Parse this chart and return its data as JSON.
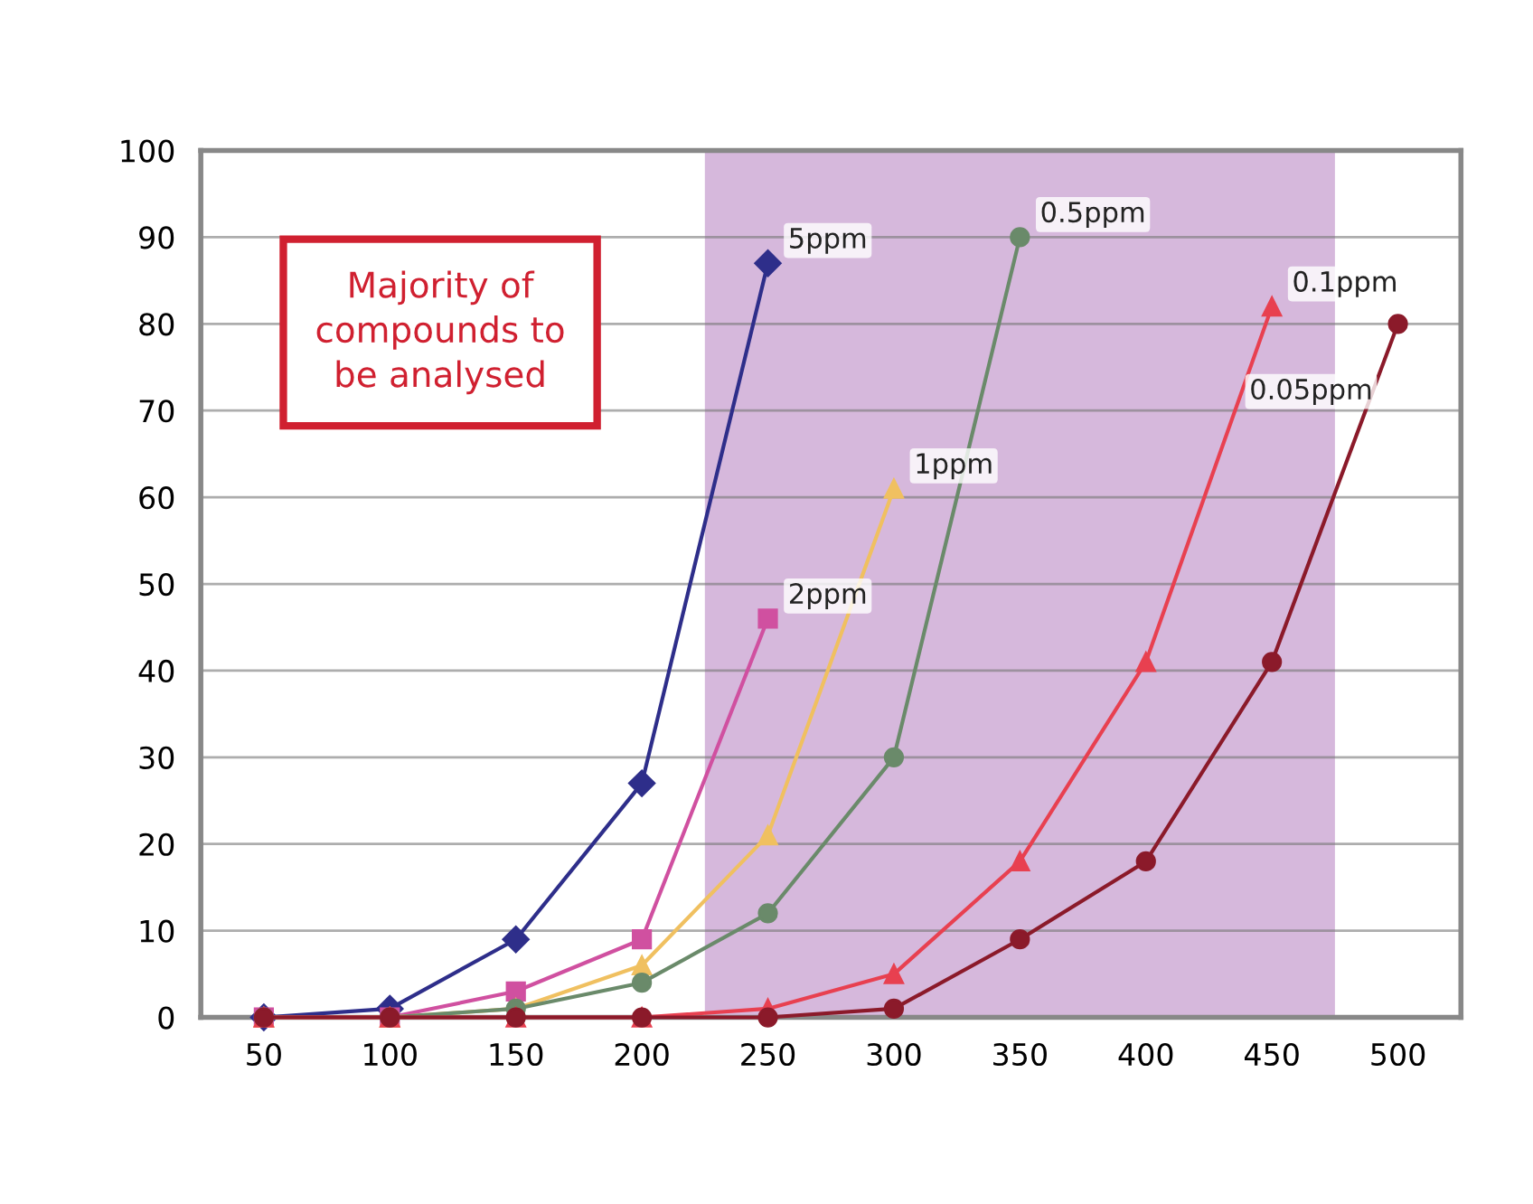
{
  "chart_data": {
    "type": "line",
    "x": [
      50,
      100,
      150,
      200,
      250,
      300,
      350,
      400,
      450,
      500
    ],
    "series": [
      {
        "name": "5ppm",
        "color": "#2e2e8a",
        "marker": "diamond",
        "values": [
          0,
          1,
          9,
          27,
          87,
          null,
          null,
          null,
          null,
          null
        ]
      },
      {
        "name": "2ppm",
        "color": "#d050a0",
        "marker": "square",
        "values": [
          0,
          0,
          3,
          9,
          46,
          null,
          null,
          null,
          null,
          null
        ]
      },
      {
        "name": "1ppm",
        "color": "#f0c060",
        "marker": "triangle",
        "values": [
          0,
          0,
          1,
          6,
          21,
          61,
          null,
          null,
          null,
          null
        ]
      },
      {
        "name": "0.5ppm",
        "color": "#6a8a6a",
        "marker": "circle",
        "values": [
          0,
          0,
          1,
          4,
          12,
          30,
          90,
          null,
          null,
          null
        ]
      },
      {
        "name": "0.1ppm",
        "color": "#e84050",
        "marker": "triangle",
        "values": [
          0,
          0,
          0,
          0,
          1,
          5,
          18,
          41,
          82,
          null
        ]
      },
      {
        "name": "0.05ppm",
        "color": "#8b1a2a",
        "marker": "circle",
        "values": [
          0,
          0,
          0,
          0,
          0,
          1,
          9,
          18,
          41,
          80
        ]
      }
    ],
    "xlim": [
      25,
      525
    ],
    "xticks": [
      50,
      100,
      150,
      200,
      250,
      300,
      350,
      400,
      450,
      500
    ],
    "ylim": [
      0,
      100
    ],
    "yticks": [
      0,
      10,
      20,
      30,
      40,
      50,
      60,
      70,
      80,
      90,
      100
    ],
    "grid": "y",
    "legend": false,
    "line_style": "solid",
    "bands": [
      {
        "axis": "x",
        "from": 225,
        "to": 475,
        "color": "#c8a0d0"
      }
    ],
    "annotations": [
      "Majority of\ncompounds to\nbe analysed"
    ]
  }
}
